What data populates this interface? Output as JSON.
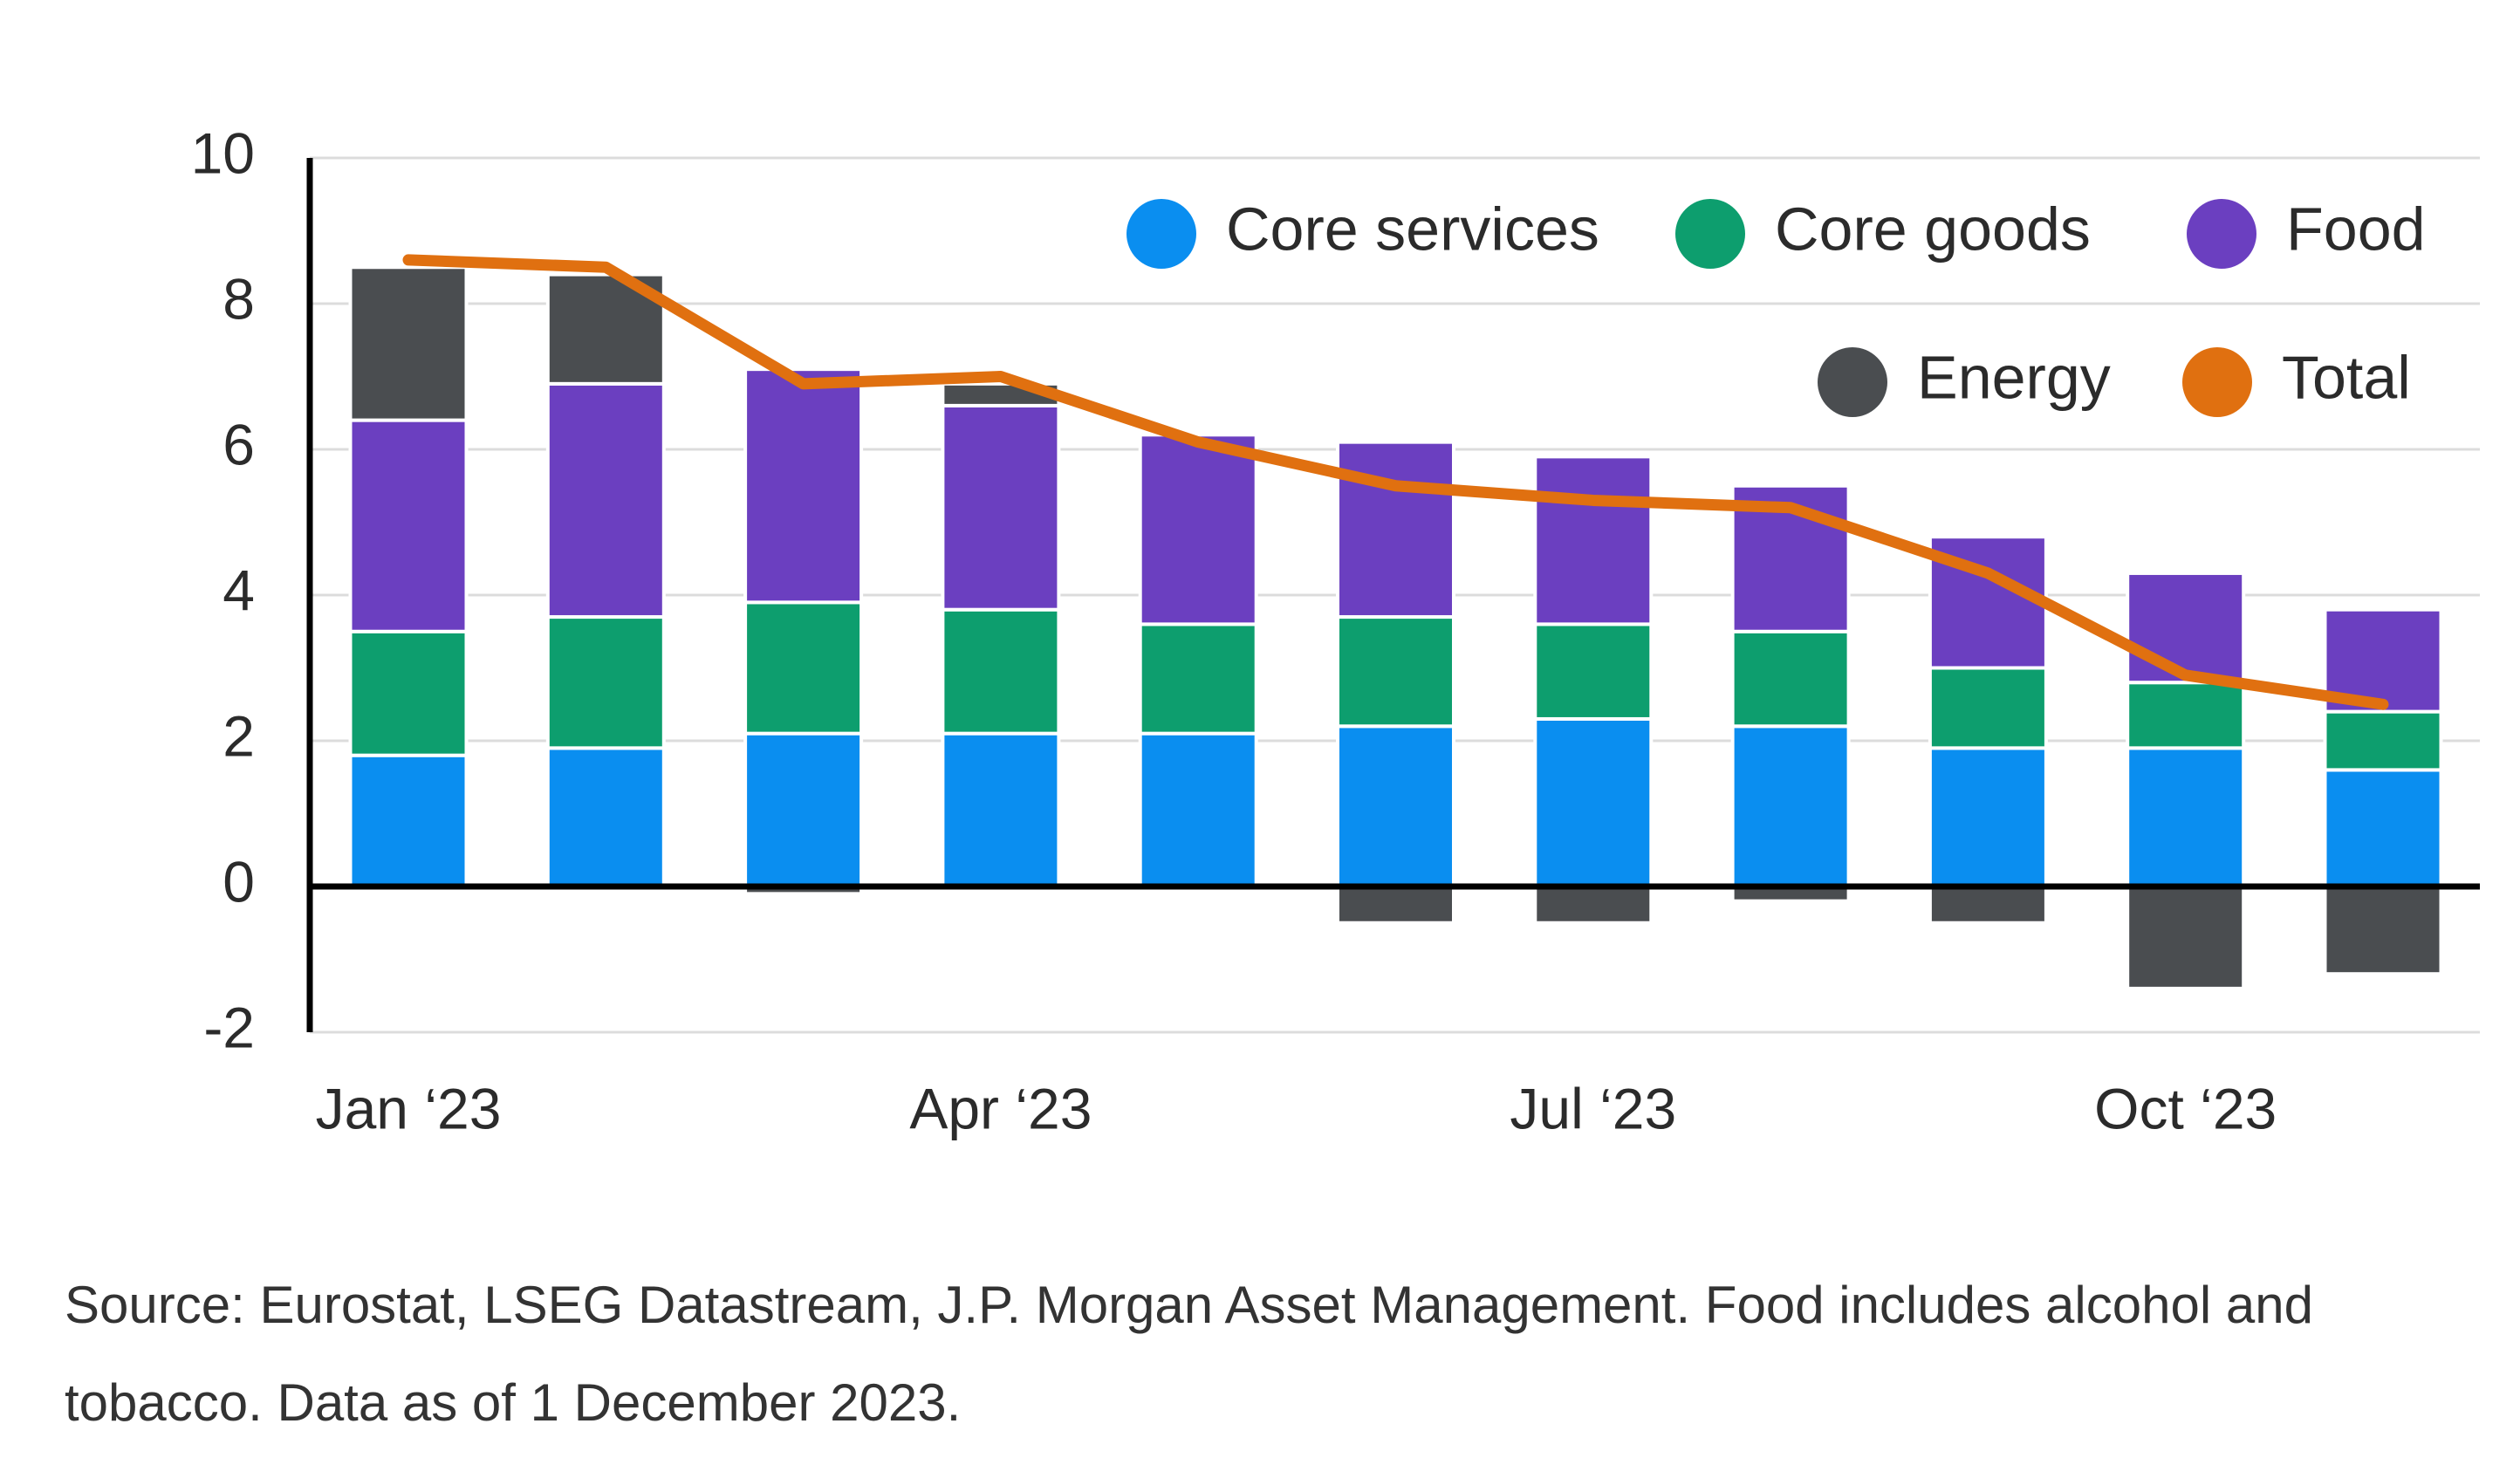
{
  "chart_data": {
    "type": "stacked-bar",
    "categories": [
      "Jan ‘23",
      null,
      null,
      "Apr ‘23",
      null,
      null,
      "Jul ‘23",
      null,
      null,
      "Oct ‘23",
      null
    ],
    "series": [
      {
        "name": "Core services",
        "color": "#0a8ef0",
        "values": [
          1.8,
          1.9,
          2.1,
          2.1,
          2.1,
          2.2,
          2.3,
          2.2,
          1.9,
          1.9,
          1.6
        ]
      },
      {
        "name": "Core goods",
        "color": "#0d9e6e",
        "values": [
          1.7,
          1.8,
          1.8,
          1.7,
          1.5,
          1.5,
          1.3,
          1.3,
          1.1,
          0.9,
          0.8
        ]
      },
      {
        "name": "Food",
        "color": "#6b3fc0",
        "values": [
          2.9,
          3.2,
          3.2,
          2.8,
          2.6,
          2.4,
          2.3,
          2.0,
          1.8,
          1.5,
          1.4
        ]
      },
      {
        "name": "Energy",
        "color": "#4a4d50",
        "values": [
          2.1,
          1.5,
          -0.1,
          0.3,
          0.0,
          -0.5,
          -0.5,
          -0.2,
          -0.5,
          -1.4,
          -1.2
        ]
      },
      {
        "name": "Total",
        "color": "#e07010",
        "type": "line",
        "values": [
          8.6,
          8.5,
          6.9,
          7.0,
          6.1,
          5.5,
          5.3,
          5.2,
          4.3,
          2.9,
          2.5
        ]
      }
    ],
    "ylim": [
      -2,
      10
    ],
    "yticks": [
      -2,
      0,
      2,
      4,
      6,
      8,
      10
    ],
    "grid": true,
    "legend": "top-right",
    "footnote": "Source: Eurostat, LSEG Datastream, J.P. Morgan Asset Management. Food includes alcohol and tobacco. Data as of 1 December 2023."
  }
}
